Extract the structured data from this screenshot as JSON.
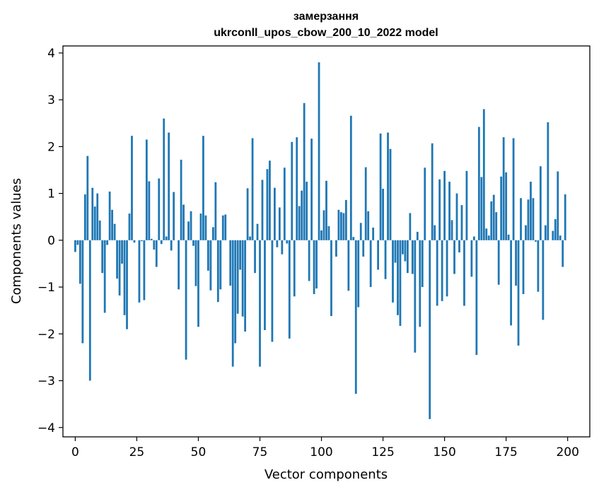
{
  "chart_data": {
    "type": "bar",
    "title": "замерзання",
    "subtitle": "ukrconll_upos_cbow_200_10_2022 model",
    "xlabel": "Vector components",
    "ylabel": "Components values",
    "xlim": [
      -5,
      209
    ],
    "ylim": [
      -4.2,
      4.15
    ],
    "xticks": [
      0,
      25,
      50,
      75,
      100,
      125,
      150,
      175,
      200
    ],
    "yticks": [
      -4,
      -3,
      -2,
      -1,
      0,
      1,
      2,
      3,
      4
    ],
    "ytick_labels": [
      "−4",
      "−3",
      "−2",
      "−1",
      "0",
      "1",
      "2",
      "3",
      "4"
    ],
    "bar_color": "#1f77b4",
    "grid": false,
    "x": [
      0,
      1,
      2,
      3,
      4,
      5,
      6,
      7,
      8,
      9,
      10,
      11,
      12,
      13,
      14,
      15,
      16,
      17,
      18,
      19,
      20,
      21,
      22,
      23,
      24,
      25,
      26,
      27,
      28,
      29,
      30,
      31,
      32,
      33,
      34,
      35,
      36,
      37,
      38,
      39,
      40,
      41,
      42,
      43,
      44,
      45,
      46,
      47,
      48,
      49,
      50,
      51,
      52,
      53,
      54,
      55,
      56,
      57,
      58,
      59,
      60,
      61,
      62,
      63,
      64,
      65,
      66,
      67,
      68,
      69,
      70,
      71,
      72,
      73,
      74,
      75,
      76,
      77,
      78,
      79,
      80,
      81,
      82,
      83,
      84,
      85,
      86,
      87,
      88,
      89,
      90,
      91,
      92,
      93,
      94,
      95,
      96,
      97,
      98,
      99,
      100,
      101,
      102,
      103,
      104,
      105,
      106,
      107,
      108,
      109,
      110,
      111,
      112,
      113,
      114,
      115,
      116,
      117,
      118,
      119,
      120,
      121,
      122,
      123,
      124,
      125,
      126,
      127,
      128,
      129,
      130,
      131,
      132,
      133,
      134,
      135,
      136,
      137,
      138,
      139,
      140,
      141,
      142,
      143,
      144,
      145,
      146,
      147,
      148,
      149,
      150,
      151,
      152,
      153,
      154,
      155,
      156,
      157,
      158,
      159,
      160,
      161,
      162,
      163,
      164,
      165,
      166,
      167,
      168,
      169,
      170,
      171,
      172,
      173,
      174,
      175,
      176,
      177,
      178,
      179,
      180,
      181,
      182,
      183,
      184,
      185,
      186,
      187,
      188,
      189,
      190,
      191,
      192,
      193,
      194,
      195,
      196,
      197,
      198,
      199
    ],
    "values": [
      -0.25,
      -0.1,
      -0.93,
      -2.2,
      0.98,
      1.8,
      -3.0,
      1.12,
      0.72,
      1.0,
      0.42,
      -0.7,
      -1.55,
      -0.1,
      1.04,
      0.65,
      0.35,
      -0.82,
      -1.18,
      -0.5,
      -1.6,
      -1.9,
      0.57,
      2.23,
      -0.05,
      0.0,
      -1.33,
      -0.02,
      -1.28,
      2.15,
      1.26,
      0.03,
      -0.2,
      -0.57,
      1.32,
      -0.08,
      2.6,
      0.08,
      2.3,
      -0.22,
      1.03,
      0.0,
      -1.05,
      1.72,
      0.76,
      -2.55,
      0.4,
      0.62,
      -0.12,
      -0.98,
      -1.85,
      0.57,
      2.23,
      0.53,
      -0.65,
      -1.07,
      0.28,
      1.24,
      -1.32,
      -1.05,
      0.53,
      0.55,
      0.0,
      -0.97,
      -2.7,
      -2.2,
      -1.57,
      -0.63,
      -1.63,
      -1.95,
      1.11,
      0.08,
      2.18,
      -0.7,
      0.35,
      -2.7,
      1.29,
      -1.92,
      1.52,
      1.7,
      -2.17,
      1.12,
      -0.15,
      0.7,
      -0.3,
      1.55,
      -0.07,
      -2.1,
      2.1,
      -1.2,
      2.2,
      0.73,
      1.06,
      2.93,
      1.25,
      -0.87,
      2.17,
      -1.15,
      -1.03,
      3.8,
      0.21,
      0.64,
      1.27,
      0.3,
      -1.62,
      0.0,
      -0.35,
      0.65,
      0.6,
      0.58,
      0.86,
      -1.08,
      2.66,
      0.07,
      -3.28,
      -1.43,
      0.37,
      -0.35,
      1.56,
      0.62,
      -1.0,
      0.27,
      0.0,
      -0.63,
      2.28,
      1.1,
      -0.83,
      2.3,
      1.95,
      -1.33,
      -0.48,
      -1.6,
      -1.83,
      -0.3,
      -0.45,
      -0.7,
      0.58,
      -0.72,
      -2.4,
      0.18,
      -1.85,
      -1.0,
      1.55,
      0.0,
      -3.82,
      2.07,
      0.32,
      -1.4,
      1.3,
      -1.3,
      1.48,
      -1.2,
      1.25,
      0.43,
      -0.72,
      1.0,
      -0.26,
      0.75,
      -1.4,
      1.48,
      0.0,
      -0.78,
      0.08,
      -2.45,
      2.42,
      1.35,
      2.8,
      0.25,
      0.1,
      0.83,
      0.97,
      0.6,
      -0.95,
      1.36,
      2.2,
      1.45,
      0.12,
      -1.82,
      2.18,
      -0.97,
      -2.25,
      0.9,
      -1.15,
      0.32,
      0.87,
      1.25,
      0.9,
      -0.03,
      -1.1,
      1.58,
      -1.7,
      0.32,
      2.52,
      0.0,
      0.2,
      0.45,
      1.47,
      0.1,
      -0.57,
      0.98
    ]
  }
}
